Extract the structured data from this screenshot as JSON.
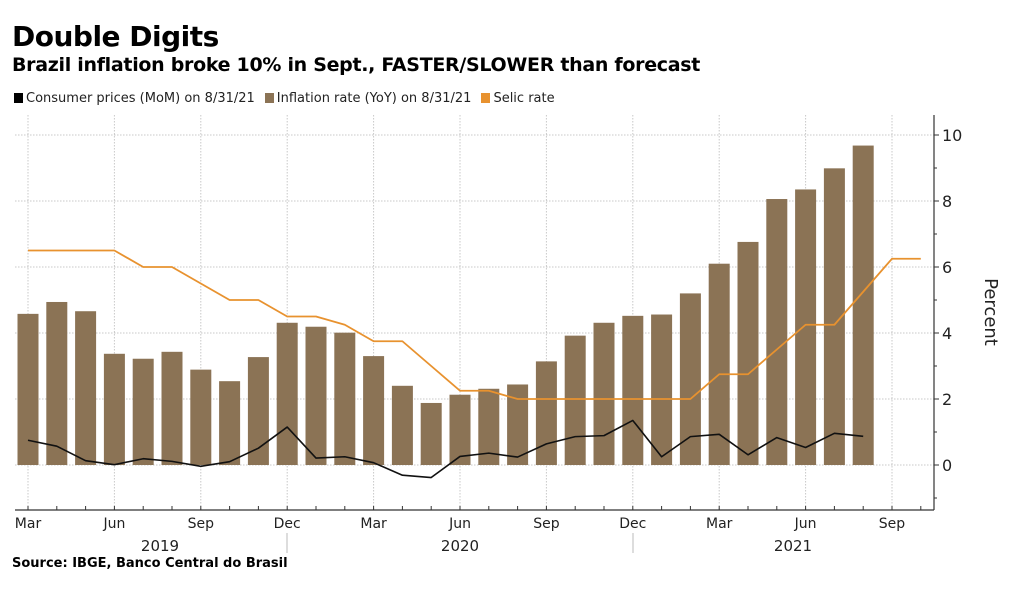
{
  "chart_data": {
    "type": "bar",
    "title": "Double Digits",
    "subtitle": "Brazil inflation broke 10% in Sept., FASTER/SLOWER than forecast",
    "ylabel": "Percent",
    "ylim": [
      -1.4,
      10.6
    ],
    "yticks": [
      "0",
      "2",
      "4",
      "6",
      "8",
      "10"
    ],
    "ytick_values": [
      0,
      2,
      4,
      6,
      8,
      10
    ],
    "grid": true,
    "legend_placement": "top-left",
    "x_start": "2019-03",
    "month_labels": [
      "Mar",
      "Jun",
      "Sep",
      "Dec",
      "Mar",
      "Jun",
      "Sep",
      "Dec",
      "Mar",
      "Jun",
      "Sep"
    ],
    "years": [
      "2019",
      "2020",
      "2021"
    ],
    "legend": [
      {
        "name": "Consumer prices (MoM) on 8/31/21",
        "color": "#000000"
      },
      {
        "name": "Inflation rate (YoY) on 8/31/21",
        "color": "#8b7355"
      },
      {
        "name": "Selic rate",
        "color": "#e8922f"
      }
    ],
    "series": [
      {
        "name": "Inflation rate (YoY) on 8/31/21",
        "type": "bar",
        "values": [
          4.58,
          4.94,
          4.66,
          3.37,
          3.22,
          3.43,
          2.89,
          2.54,
          3.27,
          4.31,
          4.19,
          4.01,
          3.3,
          2.4,
          1.88,
          2.13,
          2.31,
          2.44,
          3.14,
          3.92,
          4.31,
          4.52,
          4.56,
          5.2,
          6.1,
          6.76,
          8.06,
          8.35,
          8.99,
          9.68
        ]
      },
      {
        "name": "Consumer prices (MoM) on 8/31/21",
        "type": "line",
        "values": [
          0.75,
          0.57,
          0.13,
          0.01,
          0.19,
          0.11,
          -0.04,
          0.1,
          0.51,
          1.15,
          0.21,
          0.25,
          0.07,
          -0.31,
          -0.38,
          0.26,
          0.36,
          0.24,
          0.64,
          0.86,
          0.89,
          1.35,
          0.25,
          0.86,
          0.93,
          0.31,
          0.83,
          0.53,
          0.96,
          0.87
        ]
      },
      {
        "name": "Selic rate",
        "type": "line",
        "values": [
          6.5,
          6.5,
          6.5,
          6.5,
          6.0,
          6.0,
          5.5,
          5.0,
          5.0,
          4.5,
          4.5,
          4.25,
          3.75,
          3.75,
          3.0,
          2.25,
          2.25,
          2.0,
          2.0,
          2.0,
          2.0,
          2.0,
          2.0,
          2.0,
          2.75,
          2.75,
          3.5,
          4.25,
          4.25,
          5.25,
          6.25,
          6.25
        ]
      }
    ],
    "source": "Source: IBGE, Banco Central do Brasil"
  }
}
